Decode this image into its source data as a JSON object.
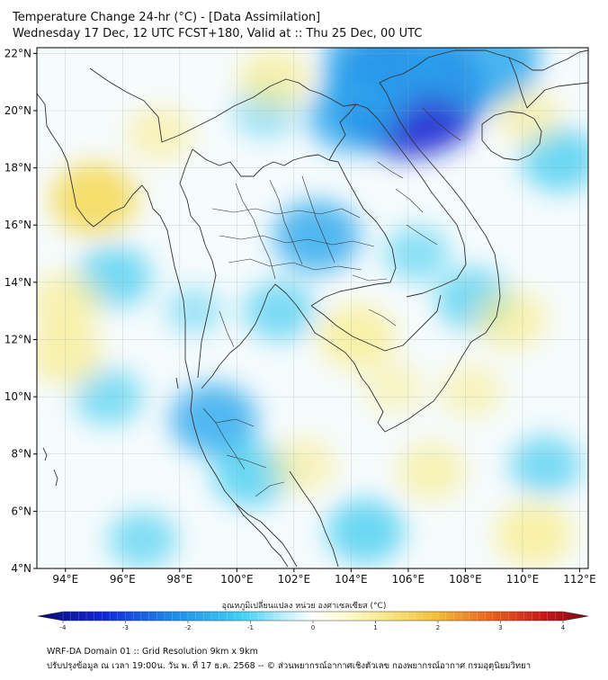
{
  "header": {
    "title_line1": "Temperature Change 24-hr (°C) - [Data Assimilation]",
    "title_line2": "Wednesday 17 Dec, 12 UTC FCST+180, Valid at :: Thu 25 Dec, 00 UTC"
  },
  "map": {
    "lat_labels": [
      "22°N",
      "20°N",
      "18°N",
      "16°N",
      "14°N",
      "12°N",
      "10°N",
      "8°N",
      "6°N",
      "4°N"
    ],
    "lon_labels": [
      "94°E",
      "96°E",
      "98°E",
      "100°E",
      "102°E",
      "104°E",
      "106°E",
      "108°E",
      "110°E",
      "112°E"
    ],
    "lat_range": [
      4,
      22.2
    ],
    "lon_range": [
      93,
      112.3
    ],
    "field": "24-hr temperature change",
    "colors": {
      "cold_strong": "#0a1fd0",
      "cold": "#33c9ef",
      "cool": "#bdeefb",
      "neutral": "#ffffff",
      "warm": "#fff7b8",
      "warm_strong": "#f5d84a",
      "coast": "#333333"
    },
    "blobs": [
      {
        "lon": 106.0,
        "lat": 20.6,
        "val": -3.5
      },
      {
        "lon": 108.5,
        "lat": 21.8,
        "val": -2.4
      },
      {
        "lon": 105.0,
        "lat": 21.6,
        "val": -2.2
      },
      {
        "lon": 102.8,
        "lat": 15.6,
        "val": -1.3
      },
      {
        "lon": 104.0,
        "lat": 19.8,
        "val": -1.3
      },
      {
        "lon": 99.2,
        "lat": 9.2,
        "val": -1.3
      },
      {
        "lon": 100.5,
        "lat": 7.3,
        "val": -1.0
      },
      {
        "lon": 101.5,
        "lat": 13.0,
        "val": -0.8
      },
      {
        "lon": 104.5,
        "lat": 5.3,
        "val": -1.0
      },
      {
        "lon": 95.7,
        "lat": 14.2,
        "val": -0.9
      },
      {
        "lon": 95.5,
        "lat": 10.0,
        "val": -0.7
      },
      {
        "lon": 96.7,
        "lat": 5.0,
        "val": -0.7
      },
      {
        "lon": 108.3,
        "lat": 13.4,
        "val": -0.9
      },
      {
        "lon": 110.8,
        "lat": 7.6,
        "val": -0.8
      },
      {
        "lon": 111.3,
        "lat": 18.3,
        "val": -1.0
      },
      {
        "lon": 101.0,
        "lat": 20.0,
        "val": -0.5
      },
      {
        "lon": 95.0,
        "lat": 16.9,
        "val": 1.3
      },
      {
        "lon": 94.0,
        "lat": 11.5,
        "val": 0.9
      },
      {
        "lon": 94.0,
        "lat": 13.3,
        "val": 0.8
      },
      {
        "lon": 104.2,
        "lat": 12.1,
        "val": 1.0
      },
      {
        "lon": 109.6,
        "lat": 12.7,
        "val": 0.8
      },
      {
        "lon": 101.3,
        "lat": 21.1,
        "val": 0.8
      },
      {
        "lon": 110.4,
        "lat": 5.2,
        "val": 1.0
      },
      {
        "lon": 106.8,
        "lat": 7.4,
        "val": 0.7
      },
      {
        "lon": 97.3,
        "lat": 19.2,
        "val": 0.6
      },
      {
        "lon": 110.2,
        "lat": 19.8,
        "val": 0.6
      },
      {
        "lon": 102.3,
        "lat": 7.6,
        "val": 0.6
      },
      {
        "lon": 108.2,
        "lat": 10.2,
        "val": 0.5
      },
      {
        "lon": 98.5,
        "lat": 13.0,
        "val": -0.3
      },
      {
        "lon": 106.3,
        "lat": 15.0,
        "val": -0.6
      },
      {
        "lon": 105.5,
        "lat": 10.3,
        "val": 0.4
      }
    ]
  },
  "colorbar": {
    "title": "อุณหภูมิเปลี่ยนแปลง หน่วย องศาเซลเซียส (°C)",
    "min": -4,
    "max": 4,
    "ticks": [
      "-4",
      "-3",
      "-2",
      "-1",
      "0",
      "1",
      "2",
      "3",
      "4"
    ]
  },
  "footer": {
    "line1": "WRF-DA Domain 01 :: Grid Resolution 9km x 9km",
    "line2": "ปรับปรุงข้อมูล ณ เวลา 19:00น. วัน พ. ที่ 17 ธ.ค. 2568 -- © ส่วนพยากรณ์อากาศเชิงตัวเลข กองพยากรณ์อากาศ กรมอุตุนิยมวิทยา"
  }
}
